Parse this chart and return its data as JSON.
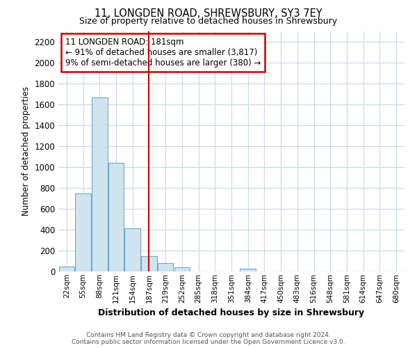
{
  "title1": "11, LONGDEN ROAD, SHREWSBURY, SY3 7EY",
  "title2": "Size of property relative to detached houses in Shrewsbury",
  "xlabel": "Distribution of detached houses by size in Shrewsbury",
  "ylabel": "Number of detached properties",
  "categories": [
    "22sqm",
    "55sqm",
    "88sqm",
    "121sqm",
    "154sqm",
    "187sqm",
    "219sqm",
    "252sqm",
    "285sqm",
    "318sqm",
    "351sqm",
    "384sqm",
    "417sqm",
    "450sqm",
    "483sqm",
    "516sqm",
    "548sqm",
    "581sqm",
    "614sqm",
    "647sqm",
    "680sqm"
  ],
  "values": [
    50,
    745,
    1670,
    1040,
    415,
    150,
    80,
    42,
    0,
    0,
    0,
    25,
    0,
    0,
    0,
    0,
    0,
    0,
    0,
    0,
    0
  ],
  "bar_color": "#d0e4f0",
  "bar_edgecolor": "#6aaad4",
  "vline_color": "#cc0000",
  "annotation_text": "11 LONGDEN ROAD: 181sqm\n← 91% of detached houses are smaller (3,817)\n9% of semi-detached houses are larger (380) →",
  "annotation_box_color": "white",
  "annotation_box_edgecolor": "#cc0000",
  "ylim": [
    0,
    2300
  ],
  "yticks": [
    0,
    200,
    400,
    600,
    800,
    1000,
    1200,
    1400,
    1600,
    1800,
    2000,
    2200
  ],
  "footer1": "Contains HM Land Registry data © Crown copyright and database right 2024.",
  "footer2": "Contains public sector information licensed under the Open Government Licence v3.0.",
  "background_color": "#ffffff",
  "plot_background": "#ffffff",
  "grid_color": "#c8d8e8"
}
